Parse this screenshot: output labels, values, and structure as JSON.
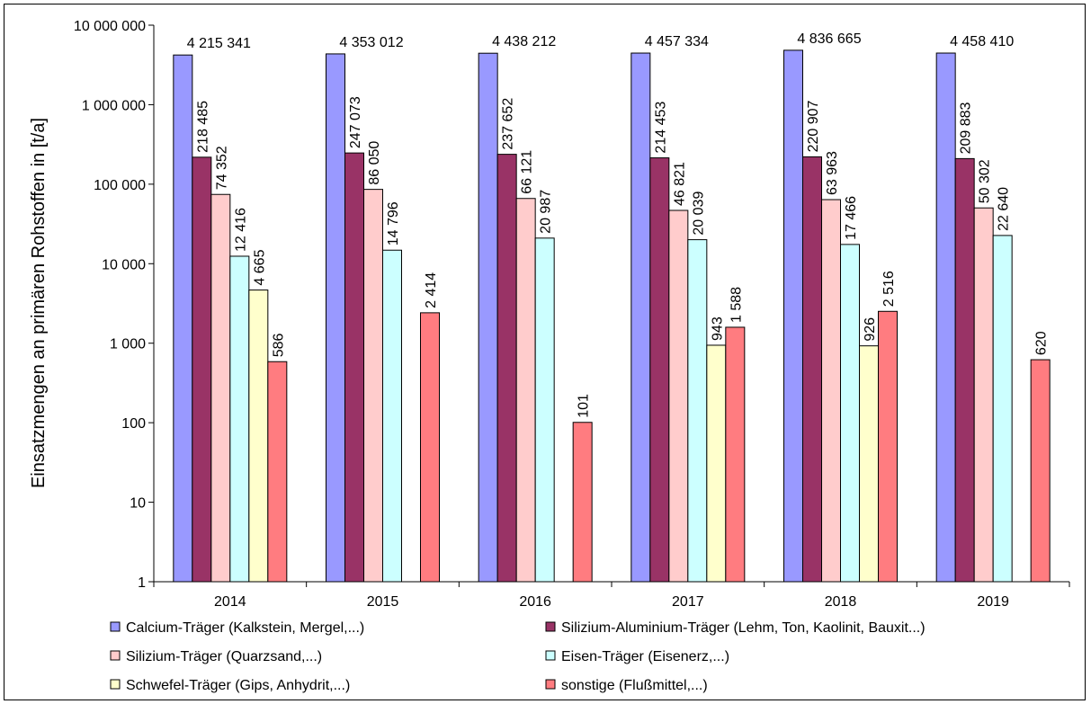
{
  "chart_data": {
    "type": "bar",
    "title": "",
    "xlabel": "",
    "ylabel": "Einsatzmengen  an primären Rohstoffen in [t/a]",
    "y_scale": "log",
    "ylim": [
      1,
      10000000
    ],
    "y_tick_values": [
      1,
      10,
      100,
      1000,
      10000,
      100000,
      1000000,
      10000000
    ],
    "y_tick_labels": [
      "1",
      "10",
      "100",
      "1 000",
      "10 000",
      "100 000",
      "1 000 000",
      "10 000 000"
    ],
    "grid": false,
    "legend_position": "bottom",
    "categories": [
      "2014",
      "2015",
      "2016",
      "2017",
      "2018",
      "2019"
    ],
    "series": [
      {
        "name": "Calcium-Träger (Kalkstein, Mergel,...)",
        "color": "#9999FF",
        "values": [
          4215341,
          4353012,
          4438212,
          4457334,
          4836665,
          4458410
        ],
        "labels": [
          "4 215 341",
          "4 353 012",
          "4 438 212",
          "4 457 334",
          "4 836 665",
          "4 458 410"
        ]
      },
      {
        "name": "Silizium-Aluminium-Träger (Lehm, Ton, Kaolinit, Bauxit...)",
        "color": "#993366",
        "values": [
          218485,
          247073,
          237652,
          214453,
          220907,
          209883
        ],
        "labels": [
          "218 485",
          "247 073",
          "237 652",
          "214 453",
          "220 907",
          "209 883"
        ]
      },
      {
        "name": "Silizium-Träger (Quarzsand,...)",
        "color": "#FFCCCC",
        "values": [
          74352,
          86050,
          66121,
          46821,
          63963,
          50302
        ],
        "labels": [
          "74 352",
          "86 050",
          "66 121",
          "46 821",
          "63 963",
          "50 302"
        ]
      },
      {
        "name": "Eisen-Träger (Eisenerz,...)",
        "color": "#CCFFFF",
        "values": [
          12416,
          14796,
          20987,
          20039,
          17466,
          22640
        ],
        "labels": [
          "12 416",
          "14 796",
          "20 987",
          "20 039",
          "17 466",
          "22 640"
        ]
      },
      {
        "name": "Schwefel-Träger (Gips, Anhydrit,...)",
        "color": "#FFFFCC",
        "values": [
          4665,
          null,
          null,
          943,
          926,
          null
        ],
        "labels": [
          "4 665",
          null,
          null,
          "943",
          "926",
          null
        ]
      },
      {
        "name": "sonstige (Flußmittel,...)",
        "color": "#FF7C80",
        "values": [
          586,
          2414,
          101,
          1588,
          2516,
          620
        ],
        "labels": [
          "586",
          "2 414",
          "101",
          "1 588",
          "2 516",
          "620"
        ]
      }
    ]
  }
}
